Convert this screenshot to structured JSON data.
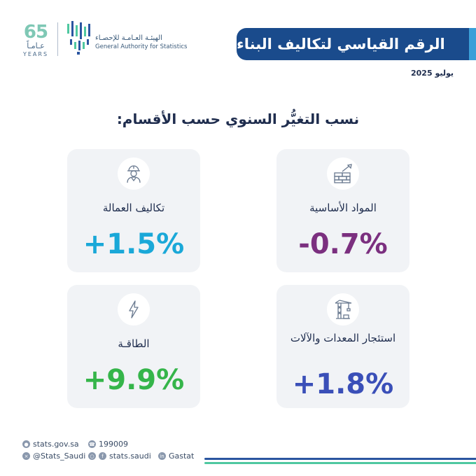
{
  "header": {
    "logo_65_number": "65",
    "logo_65_arabic": "عـامـاً",
    "logo_65_english": "YEARS",
    "gastat_arabic": "الهيئـة العـامـة للإحصـاء",
    "gastat_english": "General Authority for Statistics",
    "title": "الرقم القياسي لتكاليف البناء",
    "date": "يوليو 2025"
  },
  "section": {
    "heading": "نسب التغيُّر السنوي حسب الأقسام:"
  },
  "cards": [
    {
      "label": "المواد الأساسية",
      "value": "-0.7%",
      "color": "#7b2f7f",
      "icon": "bricks-trowel-icon"
    },
    {
      "label": "تكاليف العمالة",
      "value": "+1.5%",
      "color": "#1aa8d8",
      "icon": "worker-helmet-icon"
    },
    {
      "label": "استئجار المعدات والآلات",
      "value": "+1.8%",
      "color": "#3a4fb8",
      "icon": "crane-icon"
    },
    {
      "label": "الطاقـة",
      "value": "+9.9%",
      "color": "#35b54a",
      "icon": "lightning-icon"
    }
  ],
  "footer": {
    "website": "stats.gov.sa",
    "phone": "199009",
    "twitter": "@Stats_Saudi",
    "instagram_facebook": "stats.saudi",
    "linkedin": "Gastat"
  }
}
